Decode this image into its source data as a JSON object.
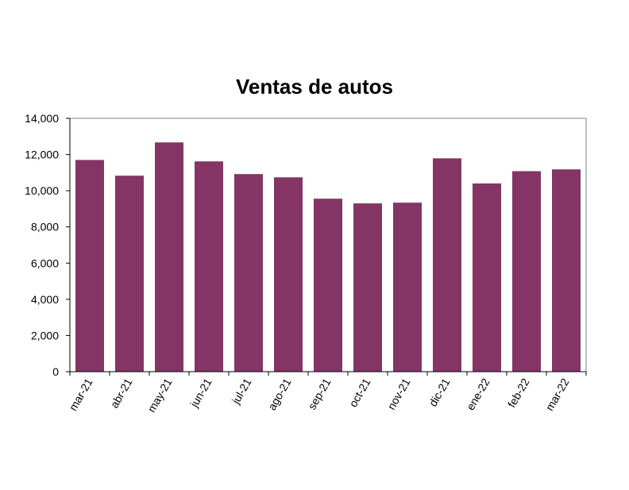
{
  "chart_data": {
    "type": "bar",
    "title": "Ventas de autos",
    "xlabel": "",
    "ylabel": "",
    "categories": [
      "mar-21",
      "abr-21",
      "may-21",
      "jun-21",
      "jul-21",
      "ago-21",
      "sep-21",
      "oct-21",
      "nov-21",
      "dic-21",
      "ene-22",
      "feb-22",
      "mar-22"
    ],
    "values": [
      11700,
      10830,
      12670,
      11620,
      10920,
      10740,
      9560,
      9300,
      9340,
      11790,
      10400,
      11080,
      11180
    ],
    "ylim": [
      0,
      14000
    ],
    "yticks": [
      0,
      2000,
      4000,
      6000,
      8000,
      10000,
      12000,
      14000
    ],
    "ytick_labels": [
      "0",
      "2,000",
      "4,000",
      "6,000",
      "8,000",
      "10,000",
      "12,000",
      "14,000"
    ],
    "bar_color": "#843565",
    "grid": false,
    "legend": "none"
  }
}
